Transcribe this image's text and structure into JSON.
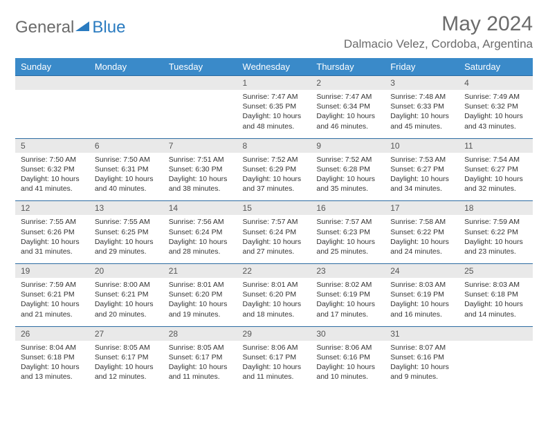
{
  "logo": {
    "part1": "General",
    "part2": "Blue"
  },
  "title": "May 2024",
  "location": "Dalmacio Velez, Cordoba, Argentina",
  "colors": {
    "header_bg": "#3a8ac9",
    "header_text": "#ffffff",
    "daynum_bg": "#e9e9e9",
    "border": "#2a6aa0",
    "text": "#333333",
    "logo_gray": "#6b6b6b",
    "logo_blue": "#2a7bc0"
  },
  "weekdays": [
    "Sunday",
    "Monday",
    "Tuesday",
    "Wednesday",
    "Thursday",
    "Friday",
    "Saturday"
  ],
  "weeks": [
    {
      "nums": [
        "",
        "",
        "",
        "1",
        "2",
        "3",
        "4"
      ],
      "cells": [
        null,
        null,
        null,
        {
          "sunrise": "7:47 AM",
          "sunset": "6:35 PM",
          "daylight": "10 hours and 48 minutes."
        },
        {
          "sunrise": "7:47 AM",
          "sunset": "6:34 PM",
          "daylight": "10 hours and 46 minutes."
        },
        {
          "sunrise": "7:48 AM",
          "sunset": "6:33 PM",
          "daylight": "10 hours and 45 minutes."
        },
        {
          "sunrise": "7:49 AM",
          "sunset": "6:32 PM",
          "daylight": "10 hours and 43 minutes."
        }
      ]
    },
    {
      "nums": [
        "5",
        "6",
        "7",
        "8",
        "9",
        "10",
        "11"
      ],
      "cells": [
        {
          "sunrise": "7:50 AM",
          "sunset": "6:32 PM",
          "daylight": "10 hours and 41 minutes."
        },
        {
          "sunrise": "7:50 AM",
          "sunset": "6:31 PM",
          "daylight": "10 hours and 40 minutes."
        },
        {
          "sunrise": "7:51 AM",
          "sunset": "6:30 PM",
          "daylight": "10 hours and 38 minutes."
        },
        {
          "sunrise": "7:52 AM",
          "sunset": "6:29 PM",
          "daylight": "10 hours and 37 minutes."
        },
        {
          "sunrise": "7:52 AM",
          "sunset": "6:28 PM",
          "daylight": "10 hours and 35 minutes."
        },
        {
          "sunrise": "7:53 AM",
          "sunset": "6:27 PM",
          "daylight": "10 hours and 34 minutes."
        },
        {
          "sunrise": "7:54 AM",
          "sunset": "6:27 PM",
          "daylight": "10 hours and 32 minutes."
        }
      ]
    },
    {
      "nums": [
        "12",
        "13",
        "14",
        "15",
        "16",
        "17",
        "18"
      ],
      "cells": [
        {
          "sunrise": "7:55 AM",
          "sunset": "6:26 PM",
          "daylight": "10 hours and 31 minutes."
        },
        {
          "sunrise": "7:55 AM",
          "sunset": "6:25 PM",
          "daylight": "10 hours and 29 minutes."
        },
        {
          "sunrise": "7:56 AM",
          "sunset": "6:24 PM",
          "daylight": "10 hours and 28 minutes."
        },
        {
          "sunrise": "7:57 AM",
          "sunset": "6:24 PM",
          "daylight": "10 hours and 27 minutes."
        },
        {
          "sunrise": "7:57 AM",
          "sunset": "6:23 PM",
          "daylight": "10 hours and 25 minutes."
        },
        {
          "sunrise": "7:58 AM",
          "sunset": "6:22 PM",
          "daylight": "10 hours and 24 minutes."
        },
        {
          "sunrise": "7:59 AM",
          "sunset": "6:22 PM",
          "daylight": "10 hours and 23 minutes."
        }
      ]
    },
    {
      "nums": [
        "19",
        "20",
        "21",
        "22",
        "23",
        "24",
        "25"
      ],
      "cells": [
        {
          "sunrise": "7:59 AM",
          "sunset": "6:21 PM",
          "daylight": "10 hours and 21 minutes."
        },
        {
          "sunrise": "8:00 AM",
          "sunset": "6:21 PM",
          "daylight": "10 hours and 20 minutes."
        },
        {
          "sunrise": "8:01 AM",
          "sunset": "6:20 PM",
          "daylight": "10 hours and 19 minutes."
        },
        {
          "sunrise": "8:01 AM",
          "sunset": "6:20 PM",
          "daylight": "10 hours and 18 minutes."
        },
        {
          "sunrise": "8:02 AM",
          "sunset": "6:19 PM",
          "daylight": "10 hours and 17 minutes."
        },
        {
          "sunrise": "8:03 AM",
          "sunset": "6:19 PM",
          "daylight": "10 hours and 16 minutes."
        },
        {
          "sunrise": "8:03 AM",
          "sunset": "6:18 PM",
          "daylight": "10 hours and 14 minutes."
        }
      ]
    },
    {
      "nums": [
        "26",
        "27",
        "28",
        "29",
        "30",
        "31",
        ""
      ],
      "cells": [
        {
          "sunrise": "8:04 AM",
          "sunset": "6:18 PM",
          "daylight": "10 hours and 13 minutes."
        },
        {
          "sunrise": "8:05 AM",
          "sunset": "6:17 PM",
          "daylight": "10 hours and 12 minutes."
        },
        {
          "sunrise": "8:05 AM",
          "sunset": "6:17 PM",
          "daylight": "10 hours and 11 minutes."
        },
        {
          "sunrise": "8:06 AM",
          "sunset": "6:17 PM",
          "daylight": "10 hours and 11 minutes."
        },
        {
          "sunrise": "8:06 AM",
          "sunset": "6:16 PM",
          "daylight": "10 hours and 10 minutes."
        },
        {
          "sunrise": "8:07 AM",
          "sunset": "6:16 PM",
          "daylight": "10 hours and 9 minutes."
        },
        null
      ]
    }
  ],
  "labels": {
    "sunrise": "Sunrise:",
    "sunset": "Sunset:",
    "daylight": "Daylight:"
  }
}
